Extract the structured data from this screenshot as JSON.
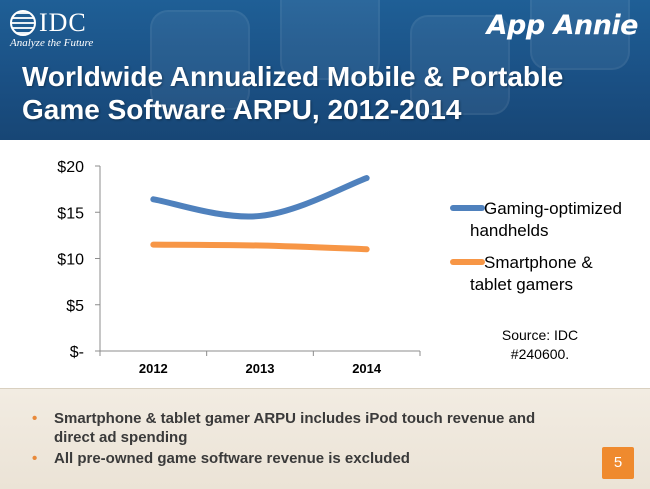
{
  "header": {
    "idc_logo": "IDC",
    "idc_tagline": "Analyze the Future",
    "appannie_logo": "App Annie",
    "title": "Worldwide Annualized Mobile & Portable Game Software ARPU, 2012-2014"
  },
  "chart_data": {
    "type": "line",
    "x": [
      "2012",
      "2013",
      "2014"
    ],
    "series": [
      {
        "name": "Gaming-optimized handhelds",
        "values": [
          16.4,
          14.6,
          18.7
        ],
        "color": "#4f81bd"
      },
      {
        "name": "Smartphone & tablet gamers",
        "values": [
          11.5,
          11.4,
          11.0
        ],
        "color": "#f79646"
      }
    ],
    "legend_lines": [
      [
        "Gaming-optimized",
        "handhelds"
      ],
      [
        "Smartphone &",
        "tablet gamers"
      ]
    ],
    "ylim": [
      0,
      20
    ],
    "yticks": [
      0,
      5,
      10,
      15,
      20
    ],
    "ytick_labels": [
      "$-",
      "$5",
      "$10",
      "$15",
      "$20"
    ],
    "grid": false,
    "legend_position": "right",
    "source_lines": [
      "Source: IDC",
      "#240600."
    ]
  },
  "footer": {
    "bullets": [
      "Smartphone & tablet gamer ARPU includes iPod touch revenue and direct ad spending",
      "All pre-owned game software revenue is excluded"
    ],
    "page_number": "5"
  }
}
